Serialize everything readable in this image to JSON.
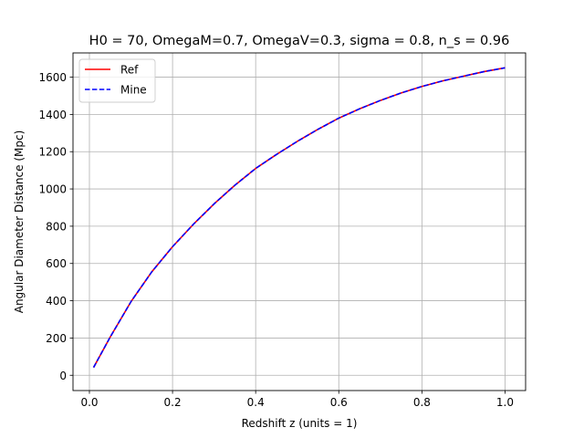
{
  "chart_data": {
    "type": "line",
    "title": "H0 = 70, OmegaM=0.7, OmegaV=0.3, sigma = 0.8, n_s = 0.96",
    "xlabel": "Redshift z (units = 1)",
    "ylabel": "Angular Diameter Distance (Mpc)",
    "xlim": [
      -0.0395,
      1.0495
    ],
    "ylim": [
      -82,
      1730
    ],
    "xticks": [
      {
        "value": 0.0,
        "label": "0.0"
      },
      {
        "value": 0.2,
        "label": "0.2"
      },
      {
        "value": 0.4,
        "label": "0.4"
      },
      {
        "value": 0.6,
        "label": "0.6"
      },
      {
        "value": 0.8,
        "label": "0.8"
      },
      {
        "value": 1.0,
        "label": "1.0"
      }
    ],
    "yticks": [
      {
        "value": 0,
        "label": "0"
      },
      {
        "value": 200,
        "label": "200"
      },
      {
        "value": 400,
        "label": "400"
      },
      {
        "value": 600,
        "label": "600"
      },
      {
        "value": 800,
        "label": "800"
      },
      {
        "value": 1000,
        "label": "1000"
      },
      {
        "value": 1200,
        "label": "1200"
      },
      {
        "value": 1400,
        "label": "1400"
      },
      {
        "value": 1600,
        "label": "1600"
      }
    ],
    "grid": true,
    "legend_position": "top-left",
    "x": [
      0.01,
      0.05,
      0.1,
      0.15,
      0.2,
      0.25,
      0.3,
      0.35,
      0.4,
      0.45,
      0.5,
      0.55,
      0.6,
      0.65,
      0.7,
      0.75,
      0.8,
      0.85,
      0.9,
      0.95,
      1.0
    ],
    "series": [
      {
        "name": "Ref",
        "color": "#ff0000",
        "linestyle": "solid",
        "values": [
          42,
          205,
          395,
          555,
          690,
          810,
          920,
          1020,
          1110,
          1185,
          1255,
          1320,
          1380,
          1430,
          1475,
          1515,
          1550,
          1580,
          1605,
          1630,
          1650
        ]
      },
      {
        "name": "Mine",
        "color": "#0000ff",
        "linestyle": "dashed",
        "values": [
          42,
          205,
          395,
          555,
          690,
          810,
          920,
          1020,
          1110,
          1185,
          1255,
          1320,
          1380,
          1430,
          1475,
          1515,
          1550,
          1580,
          1605,
          1630,
          1650
        ]
      }
    ]
  }
}
